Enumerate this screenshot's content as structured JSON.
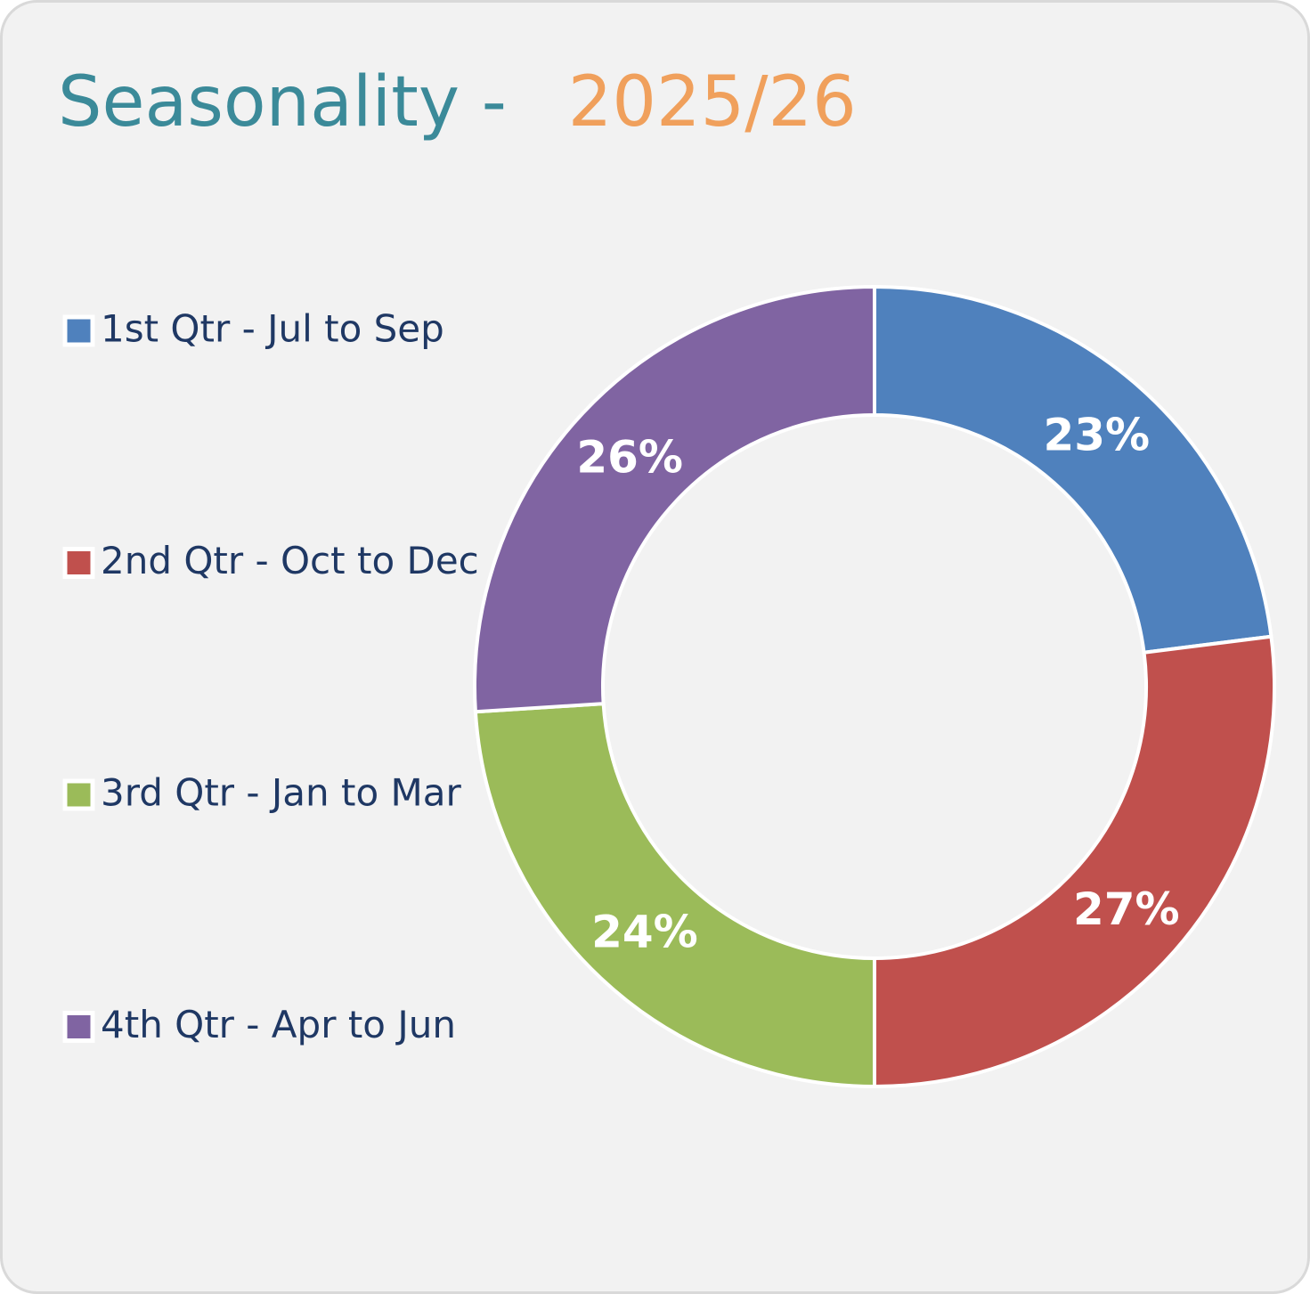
{
  "chart_data": {
    "type": "donut",
    "title": "Seasonality -",
    "subtitle": "2025/26",
    "categories": [
      "1st Qtr - Jul to Sep",
      "2nd Qtr - Oct to Dec",
      "3rd Qtr - Jan to Mar",
      "4th Qtr - Apr to Jun"
    ],
    "values": [
      23,
      27,
      24,
      26
    ],
    "value_labels": [
      "23%",
      "27%",
      "24%",
      "26%"
    ],
    "colors": [
      "#4f81bd",
      "#c0504d",
      "#9bbb59",
      "#8064a2"
    ],
    "legend": "left"
  }
}
